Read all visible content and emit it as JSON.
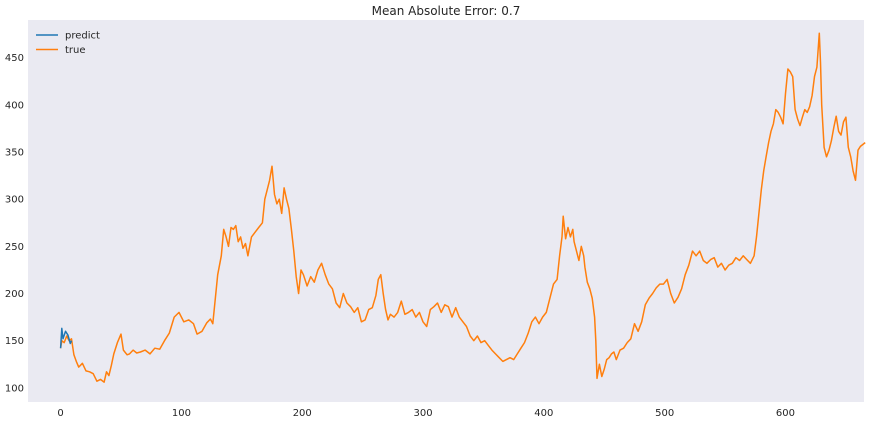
{
  "chart_data": {
    "type": "line",
    "title": "Mean Absolute Error: 0.7",
    "xlabel": "",
    "ylabel": "",
    "xlim": [
      -27,
      665
    ],
    "ylim": [
      85,
      490
    ],
    "x_ticks": [
      0,
      100,
      200,
      300,
      400,
      500,
      600
    ],
    "y_ticks": [
      100,
      150,
      200,
      250,
      300,
      350,
      400,
      450
    ],
    "grid": false,
    "legend_position": "top-left",
    "colors": {
      "background": "#eaeaf2",
      "predict": "#1f77b4",
      "true": "#ff7f0e"
    },
    "series": [
      {
        "name": "predict",
        "points": [
          [
            0,
            142
          ],
          [
            1,
            163
          ],
          [
            2,
            152
          ],
          [
            4,
            160
          ],
          [
            6,
            156
          ],
          [
            8,
            147
          ],
          [
            9,
            150
          ]
        ]
      },
      {
        "name": "true",
        "points": [
          [
            0,
            142
          ],
          [
            1,
            150
          ],
          [
            3,
            148
          ],
          [
            5,
            155
          ],
          [
            7,
            150
          ],
          [
            9,
            152
          ],
          [
            11,
            135
          ],
          [
            13,
            128
          ],
          [
            15,
            122
          ],
          [
            18,
            126
          ],
          [
            21,
            118
          ],
          [
            24,
            117
          ],
          [
            27,
            115
          ],
          [
            30,
            107
          ],
          [
            33,
            109
          ],
          [
            36,
            106
          ],
          [
            38,
            117
          ],
          [
            40,
            113
          ],
          [
            42,
            124
          ],
          [
            44,
            136
          ],
          [
            47,
            148
          ],
          [
            50,
            157
          ],
          [
            52,
            140
          ],
          [
            55,
            135
          ],
          [
            57,
            136
          ],
          [
            60,
            140
          ],
          [
            63,
            137
          ],
          [
            66,
            138
          ],
          [
            70,
            140
          ],
          [
            74,
            136
          ],
          [
            78,
            142
          ],
          [
            82,
            141
          ],
          [
            86,
            150
          ],
          [
            90,
            158
          ],
          [
            94,
            175
          ],
          [
            98,
            180
          ],
          [
            102,
            170
          ],
          [
            106,
            172
          ],
          [
            110,
            168
          ],
          [
            113,
            157
          ],
          [
            117,
            160
          ],
          [
            121,
            169
          ],
          [
            124,
            173
          ],
          [
            126,
            168
          ],
          [
            130,
            220
          ],
          [
            133,
            240
          ],
          [
            135,
            268
          ],
          [
            137,
            260
          ],
          [
            139,
            250
          ],
          [
            141,
            270
          ],
          [
            143,
            268
          ],
          [
            145,
            272
          ],
          [
            147,
            255
          ],
          [
            149,
            260
          ],
          [
            151,
            248
          ],
          [
            153,
            253
          ],
          [
            155,
            240
          ],
          [
            158,
            260
          ],
          [
            161,
            265
          ],
          [
            164,
            270
          ],
          [
            167,
            275
          ],
          [
            169,
            300
          ],
          [
            171,
            310
          ],
          [
            173,
            320
          ],
          [
            175,
            335
          ],
          [
            177,
            305
          ],
          [
            179,
            295
          ],
          [
            181,
            300
          ],
          [
            183,
            285
          ],
          [
            185,
            312
          ],
          [
            187,
            300
          ],
          [
            189,
            290
          ],
          [
            191,
            268
          ],
          [
            193,
            245
          ],
          [
            195,
            218
          ],
          [
            197,
            200
          ],
          [
            199,
            225
          ],
          [
            201,
            220
          ],
          [
            204,
            208
          ],
          [
            207,
            218
          ],
          [
            210,
            212
          ],
          [
            213,
            225
          ],
          [
            216,
            232
          ],
          [
            219,
            220
          ],
          [
            222,
            210
          ],
          [
            225,
            205
          ],
          [
            228,
            190
          ],
          [
            231,
            185
          ],
          [
            234,
            200
          ],
          [
            237,
            190
          ],
          [
            240,
            186
          ],
          [
            243,
            180
          ],
          [
            246,
            185
          ],
          [
            249,
            170
          ],
          [
            252,
            172
          ],
          [
            255,
            183
          ],
          [
            258,
            185
          ],
          [
            261,
            198
          ],
          [
            263,
            215
          ],
          [
            265,
            220
          ],
          [
            267,
            200
          ],
          [
            269,
            183
          ],
          [
            271,
            172
          ],
          [
            273,
            178
          ],
          [
            276,
            175
          ],
          [
            279,
            180
          ],
          [
            282,
            192
          ],
          [
            285,
            178
          ],
          [
            288,
            180
          ],
          [
            291,
            183
          ],
          [
            294,
            175
          ],
          [
            297,
            180
          ],
          [
            300,
            170
          ],
          [
            303,
            165
          ],
          [
            306,
            183
          ],
          [
            309,
            186
          ],
          [
            312,
            190
          ],
          [
            315,
            180
          ],
          [
            318,
            188
          ],
          [
            321,
            186
          ],
          [
            324,
            175
          ],
          [
            327,
            185
          ],
          [
            330,
            175
          ],
          [
            333,
            170
          ],
          [
            336,
            165
          ],
          [
            339,
            155
          ],
          [
            342,
            150
          ],
          [
            345,
            155
          ],
          [
            348,
            148
          ],
          [
            351,
            150
          ],
          [
            354,
            145
          ],
          [
            357,
            140
          ],
          [
            360,
            136
          ],
          [
            363,
            132
          ],
          [
            366,
            128
          ],
          [
            369,
            130
          ],
          [
            372,
            132
          ],
          [
            375,
            130
          ],
          [
            378,
            136
          ],
          [
            381,
            142
          ],
          [
            384,
            148
          ],
          [
            387,
            158
          ],
          [
            390,
            170
          ],
          [
            393,
            175
          ],
          [
            396,
            168
          ],
          [
            399,
            175
          ],
          [
            402,
            180
          ],
          [
            405,
            195
          ],
          [
            408,
            210
          ],
          [
            411,
            215
          ],
          [
            413,
            240
          ],
          [
            415,
            260
          ],
          [
            416,
            282
          ],
          [
            418,
            258
          ],
          [
            420,
            270
          ],
          [
            422,
            260
          ],
          [
            424,
            268
          ],
          [
            425,
            255
          ],
          [
            427,
            245
          ],
          [
            429,
            235
          ],
          [
            431,
            250
          ],
          [
            433,
            240
          ],
          [
            434,
            228
          ],
          [
            436,
            212
          ],
          [
            438,
            205
          ],
          [
            440,
            195
          ],
          [
            442,
            175
          ],
          [
            443,
            150
          ],
          [
            444,
            110
          ],
          [
            446,
            125
          ],
          [
            448,
            112
          ],
          [
            450,
            120
          ],
          [
            452,
            130
          ],
          [
            454,
            132
          ],
          [
            456,
            136
          ],
          [
            458,
            138
          ],
          [
            460,
            130
          ],
          [
            463,
            140
          ],
          [
            466,
            142
          ],
          [
            469,
            148
          ],
          [
            472,
            152
          ],
          [
            475,
            168
          ],
          [
            478,
            160
          ],
          [
            481,
            170
          ],
          [
            484,
            188
          ],
          [
            487,
            195
          ],
          [
            490,
            200
          ],
          [
            493,
            206
          ],
          [
            496,
            210
          ],
          [
            499,
            210
          ],
          [
            502,
            215
          ],
          [
            505,
            200
          ],
          [
            508,
            190
          ],
          [
            511,
            196
          ],
          [
            514,
            205
          ],
          [
            517,
            220
          ],
          [
            520,
            230
          ],
          [
            523,
            245
          ],
          [
            526,
            240
          ],
          [
            529,
            245
          ],
          [
            532,
            235
          ],
          [
            535,
            232
          ],
          [
            538,
            236
          ],
          [
            541,
            238
          ],
          [
            544,
            228
          ],
          [
            547,
            232
          ],
          [
            550,
            225
          ],
          [
            553,
            230
          ],
          [
            556,
            232
          ],
          [
            559,
            238
          ],
          [
            562,
            235
          ],
          [
            565,
            240
          ],
          [
            568,
            236
          ],
          [
            571,
            232
          ],
          [
            574,
            240
          ],
          [
            576,
            260
          ],
          [
            578,
            285
          ],
          [
            580,
            310
          ],
          [
            582,
            330
          ],
          [
            584,
            345
          ],
          [
            586,
            360
          ],
          [
            588,
            372
          ],
          [
            590,
            380
          ],
          [
            592,
            395
          ],
          [
            594,
            392
          ],
          [
            596,
            387
          ],
          [
            598,
            380
          ],
          [
            600,
            412
          ],
          [
            602,
            438
          ],
          [
            604,
            435
          ],
          [
            606,
            430
          ],
          [
            608,
            395
          ],
          [
            610,
            385
          ],
          [
            612,
            378
          ],
          [
            614,
            387
          ],
          [
            616,
            395
          ],
          [
            618,
            392
          ],
          [
            620,
            398
          ],
          [
            622,
            410
          ],
          [
            624,
            430
          ],
          [
            626,
            440
          ],
          [
            628,
            476
          ],
          [
            629,
            445
          ],
          [
            630,
            400
          ],
          [
            632,
            355
          ],
          [
            634,
            345
          ],
          [
            636,
            352
          ],
          [
            638,
            362
          ],
          [
            640,
            376
          ],
          [
            642,
            388
          ],
          [
            644,
            372
          ],
          [
            646,
            368
          ],
          [
            648,
            382
          ],
          [
            650,
            387
          ],
          [
            652,
            355
          ],
          [
            654,
            345
          ],
          [
            656,
            330
          ],
          [
            658,
            320
          ],
          [
            660,
            352
          ],
          [
            662,
            356
          ],
          [
            664,
            358
          ],
          [
            666,
            360
          ]
        ]
      }
    ]
  }
}
